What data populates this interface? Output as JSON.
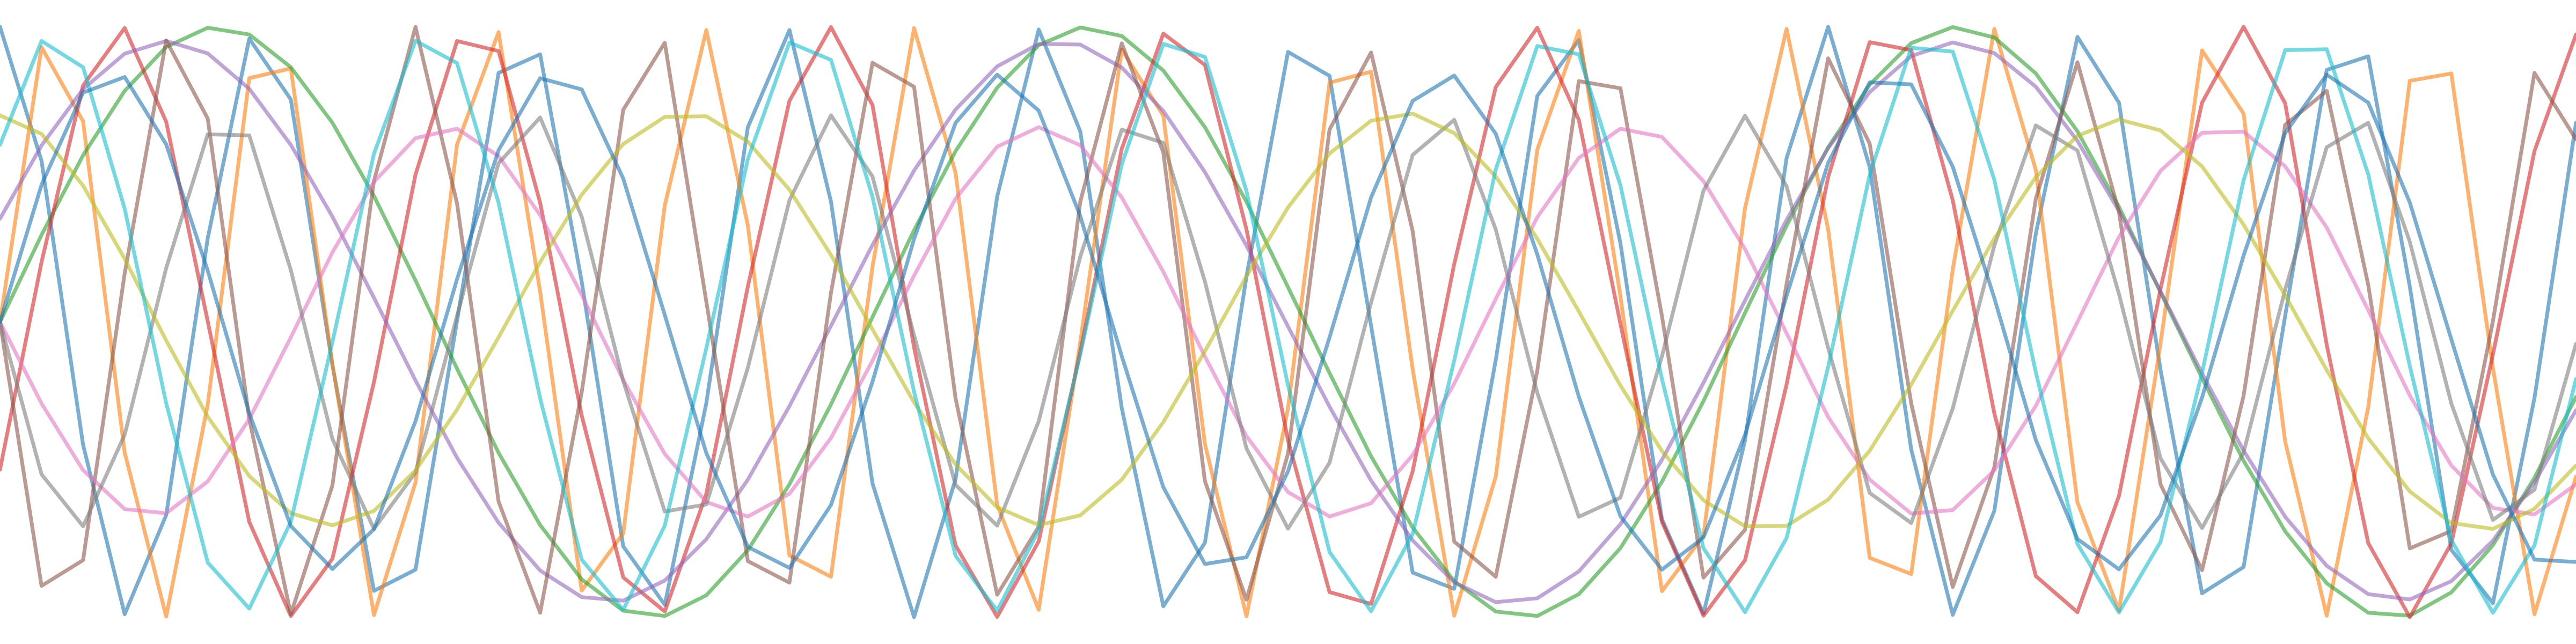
{
  "chart_data": {
    "type": "line",
    "title": "",
    "xlabel": "",
    "ylabel": "",
    "grid": false,
    "legend": "none",
    "axes_visible": false,
    "xlim": [
      0,
      6.2
    ],
    "ylim": [
      -1.0,
      1.0
    ],
    "x": [
      0.0,
      0.1,
      0.2,
      0.3,
      0.4,
      0.5,
      0.6,
      0.7,
      0.8,
      0.9,
      1.0,
      1.1,
      1.2,
      1.3,
      1.4,
      1.5,
      1.6,
      1.7,
      1.8,
      1.9,
      2.0,
      2.1,
      2.2,
      2.3,
      2.4,
      2.5,
      2.6,
      2.7,
      2.8,
      2.9,
      3.0,
      3.1,
      3.2,
      3.3,
      3.4,
      3.5,
      3.6,
      3.7,
      3.8,
      3.9,
      4.0,
      4.1,
      4.2,
      4.3,
      4.4,
      4.5,
      4.6,
      4.7,
      4.8,
      4.9,
      5.0,
      5.1,
      5.2,
      5.3,
      5.4,
      5.5,
      5.6,
      5.7,
      5.8,
      5.9,
      6.0,
      6.1,
      6.2
    ],
    "series": [
      {
        "color": "#1f77b4",
        "values": [
          1.0,
          0.546,
          -0.416,
          -0.99,
          -0.654,
          0.284,
          0.96,
          0.754,
          -0.146,
          -0.911,
          -0.839,
          0.004,
          0.844,
          0.907,
          0.137,
          -0.76,
          -0.958,
          -0.275,
          0.66,
          0.989,
          0.408,
          -0.547,
          -1.0,
          -0.532,
          0.425,
          0.991,
          0.646,
          -0.292,
          -0.963,
          -0.748,
          0.154,
          0.915,
          0.834,
          -0.013,
          -0.849,
          -0.904,
          -0.129,
          0.766,
          0.955,
          0.267,
          -0.668,
          -0.988,
          -0.401,
          0.555,
          1.0,
          0.525,
          -0.432,
          -0.992,
          -0.64,
          0.3,
          0.966,
          0.743,
          -0.162,
          -0.919,
          -0.83,
          0.021,
          0.854,
          0.9,
          0.12,
          -0.772,
          -0.953,
          -0.258,
          0.675
        ]
      },
      {
        "color": "#ff7f0e",
        "values": [
          0.0,
          0.931,
          0.68,
          -0.442,
          -0.998,
          -0.279,
          0.826,
          0.859,
          -0.143,
          -0.993,
          -0.544,
          0.601,
          0.982,
          0.103,
          -0.91,
          -0.716,
          0.395,
          0.989,
          0.327,
          -0.791,
          -0.863,
          0.187,
          0.996,
          0.505,
          -0.62,
          -0.975,
          -0.068,
          0.923,
          0.699,
          -0.413,
          -0.997,
          -0.293,
          0.811,
          0.848,
          -0.16,
          -0.995,
          -0.524,
          0.584,
          0.986,
          0.087,
          -0.912,
          -0.724,
          0.386,
          0.993,
          0.314,
          -0.799,
          -0.854,
          0.178,
          0.993,
          0.515,
          -0.611,
          -0.978,
          -0.073,
          0.92,
          0.706,
          -0.405,
          -0.995,
          -0.288,
          0.817,
          0.842,
          -0.156,
          -0.99,
          -0.524
        ]
      },
      {
        "color": "#2ca02c",
        "values": [
          0.0,
          0.295,
          0.565,
          0.783,
          0.932,
          0.997,
          0.974,
          0.863,
          0.675,
          0.427,
          0.141,
          -0.158,
          -0.443,
          -0.688,
          -0.872,
          -0.978,
          -0.996,
          -0.926,
          -0.773,
          -0.55,
          -0.279,
          0.017,
          0.311,
          0.579,
          0.794,
          0.938,
          0.998,
          0.969,
          0.852,
          0.66,
          0.407,
          0.118,
          -0.173,
          -0.455,
          -0.696,
          -0.878,
          -0.981,
          -0.996,
          -0.922,
          -0.766,
          -0.541,
          -0.268,
          0.031,
          0.326,
          0.592,
          0.804,
          0.945,
          0.999,
          0.964,
          0.842,
          0.646,
          0.39,
          0.101,
          -0.19,
          -0.47,
          -0.709,
          -0.885,
          -0.985,
          -0.995,
          -0.916,
          -0.756,
          -0.528,
          -0.254
        ]
      },
      {
        "color": "#d62728",
        "values": [
          -0.5,
          0.203,
          0.801,
          0.996,
          0.678,
          0.002,
          -0.677,
          -0.996,
          -0.802,
          -0.204,
          0.499,
          0.952,
          0.918,
          0.404,
          -0.317,
          -0.865,
          -0.981,
          -0.582,
          0.12,
          0.749,
          0.999,
          0.735,
          -0.086,
          -0.757,
          -0.999,
          -0.743,
          -0.102,
          0.587,
          0.977,
          0.871,
          0.314,
          -0.401,
          -0.915,
          -0.955,
          -0.506,
          0.196,
          0.796,
          0.997,
          0.685,
          -0.006,
          -0.677,
          -0.995,
          -0.807,
          -0.212,
          0.491,
          0.948,
          0.921,
          0.412,
          -0.309,
          -0.861,
          -0.983,
          -0.589,
          0.112,
          0.743,
          1.0,
          0.741,
          -0.077,
          -0.749,
          -1.0,
          -0.75,
          -0.11,
          0.579,
          0.974
        ]
      },
      {
        "color": "#9467bd",
        "values": [
          0.35,
          0.598,
          0.789,
          0.909,
          0.952,
          0.91,
          0.79,
          0.6,
          0.357,
          0.082,
          -0.198,
          -0.46,
          -0.68,
          -0.842,
          -0.932,
          -0.944,
          -0.876,
          -0.736,
          -0.534,
          -0.285,
          -0.013,
          0.261,
          0.513,
          0.72,
          0.866,
          0.942,
          0.94,
          0.862,
          0.715,
          0.508,
          0.259,
          -0.015,
          -0.287,
          -0.537,
          -0.74,
          -0.882,
          -0.949,
          -0.936,
          -0.845,
          -0.685,
          -0.467,
          -0.206,
          0.073,
          0.346,
          0.589,
          0.779,
          0.901,
          0.947,
          0.911,
          0.797,
          0.614,
          0.376,
          0.104,
          -0.174,
          -0.436,
          -0.66,
          -0.826,
          -0.922,
          -0.94,
          -0.878,
          -0.741,
          -0.543,
          -0.299
        ]
      },
      {
        "color": "#8c564b",
        "values": [
          0.0,
          -0.894,
          -0.807,
          0.164,
          0.954,
          0.689,
          -0.329,
          -0.99,
          -0.554,
          0.478,
          1.0,
          0.402,
          -0.608,
          -0.985,
          -0.238,
          0.719,
          0.946,
          0.069,
          -0.81,
          -0.883,
          0.099,
          0.878,
          0.797,
          -0.259,
          -0.924,
          -0.693,
          0.407,
          0.944,
          0.574,
          -0.539,
          -0.941,
          -0.446,
          0.652,
          0.913,
          0.308,
          -0.744,
          -0.863,
          -0.165,
          0.816,
          0.792,
          0.02,
          -0.866,
          -0.704,
          0.129,
          0.893,
          0.604,
          -0.276,
          -0.898,
          -0.492,
          0.418,
          0.88,
          0.373,
          -0.55,
          -0.841,
          -0.25,
          0.668,
          0.783,
          0.125,
          -0.767,
          -0.708,
          0.003,
          0.844,
          0.619
        ]
      },
      {
        "color": "#e377c2",
        "values": [
          0.0,
          -0.276,
          -0.502,
          -0.634,
          -0.648,
          -0.54,
          -0.329,
          -0.052,
          0.236,
          0.475,
          0.623,
          0.655,
          0.562,
          0.362,
          0.092,
          -0.196,
          -0.447,
          -0.61,
          -0.659,
          -0.582,
          -0.393,
          -0.131,
          0.157,
          0.418,
          0.594,
          0.66,
          0.599,
          0.422,
          0.17,
          -0.117,
          -0.387,
          -0.576,
          -0.659,
          -0.614,
          -0.451,
          -0.209,
          0.078,
          0.355,
          0.556,
          0.655,
          0.627,
          0.477,
          0.247,
          -0.038,
          -0.322,
          -0.534,
          -0.649,
          -0.637,
          -0.503,
          -0.284,
          0.0,
          0.288,
          0.512,
          0.641,
          0.645,
          0.527,
          0.32,
          0.04,
          -0.249,
          -0.486,
          -0.63,
          -0.652,
          -0.55
        ]
      },
      {
        "color": "#7f7f7f",
        "values": [
          0.0,
          -0.516,
          -0.692,
          -0.382,
          0.183,
          0.636,
          0.632,
          0.176,
          -0.396,
          -0.701,
          -0.51,
          0.021,
          0.538,
          0.693,
          0.357,
          -0.2,
          -0.642,
          -0.618,
          -0.155,
          0.412,
          0.7,
          0.493,
          -0.045,
          -0.552,
          -0.69,
          -0.336,
          0.221,
          0.652,
          0.607,
          0.137,
          -0.428,
          -0.7,
          -0.477,
          0.066,
          0.566,
          0.685,
          0.314,
          -0.24,
          -0.66,
          -0.595,
          -0.116,
          0.445,
          0.699,
          0.46,
          -0.088,
          -0.579,
          -0.681,
          -0.293,
          0.259,
          0.666,
          0.581,
          0.095,
          -0.462,
          -0.698,
          -0.442,
          0.11,
          0.592,
          0.675,
          0.272,
          -0.276,
          -0.671,
          -0.568,
          -0.074
        ]
      },
      {
        "color": "#bcbd22",
        "values": [
          0.7,
          0.637,
          0.462,
          0.214,
          -0.063,
          -0.321,
          -0.522,
          -0.648,
          -0.689,
          -0.64,
          -0.503,
          -0.297,
          -0.052,
          0.203,
          0.431,
          0.603,
          0.695,
          0.697,
          0.611,
          0.448,
          0.227,
          -0.025,
          -0.272,
          -0.483,
          -0.628,
          -0.688,
          -0.655,
          -0.534,
          -0.339,
          -0.099,
          0.155,
          0.388,
          0.571,
          0.682,
          0.706,
          0.64,
          0.493,
          0.282,
          0.036,
          -0.215,
          -0.437,
          -0.604,
          -0.692,
          -0.691,
          -0.602,
          -0.436,
          -0.212,
          0.038,
          0.283,
          0.491,
          0.631,
          0.686,
          0.649,
          0.527,
          0.33,
          0.09,
          -0.163,
          -0.394,
          -0.574,
          -0.681,
          -0.701,
          -0.633,
          -0.486
        ]
      },
      {
        "color": "#17becf",
        "values": [
          0.6,
          0.952,
          0.863,
          0.384,
          -0.275,
          -0.815,
          -0.971,
          -0.677,
          -0.068,
          0.57,
          0.953,
          0.877,
          0.404,
          -0.259,
          -0.805,
          -0.975,
          -0.69,
          -0.089,
          0.552,
          0.947,
          0.888,
          0.424,
          -0.236,
          -0.792,
          -0.978,
          -0.705,
          -0.11,
          0.535,
          0.942,
          0.898,
          0.444,
          -0.214,
          -0.779,
          -0.98,
          -0.718,
          -0.131,
          0.517,
          0.935,
          0.907,
          0.463,
          -0.193,
          -0.766,
          -0.983,
          -0.732,
          -0.152,
          0.499,
          0.929,
          0.916,
          0.482,
          -0.171,
          -0.752,
          -0.984,
          -0.745,
          -0.172,
          0.48,
          0.921,
          0.924,
          0.5,
          -0.149,
          -0.739,
          -0.985,
          -0.757,
          -0.193
        ]
      },
      {
        "color": "#1f77b4",
        "values": [
          0.0,
          0.465,
          0.777,
          0.83,
          0.602,
          0.174,
          -0.309,
          -0.691,
          -0.837,
          -0.702,
          -0.336,
          0.145,
          0.582,
          0.826,
          0.788,
          0.486,
          0.024,
          -0.444,
          -0.762,
          -0.833,
          -0.62,
          -0.202,
          0.281,
          0.675,
          0.838,
          0.716,
          0.359,
          -0.116,
          -0.56,
          -0.82,
          -0.797,
          -0.506,
          -0.052,
          0.422,
          0.749,
          0.835,
          0.638,
          0.229,
          -0.253,
          -0.658,
          -0.839,
          -0.73,
          -0.382,
          0.088,
          0.539,
          0.812,
          0.805,
          0.526,
          0.081,
          -0.4,
          -0.735,
          -0.838,
          -0.655,
          -0.256,
          0.225,
          0.64,
          0.838,
          0.743,
          0.405,
          -0.059,
          -0.517,
          -0.805,
          -0.813
        ]
      }
    ]
  }
}
